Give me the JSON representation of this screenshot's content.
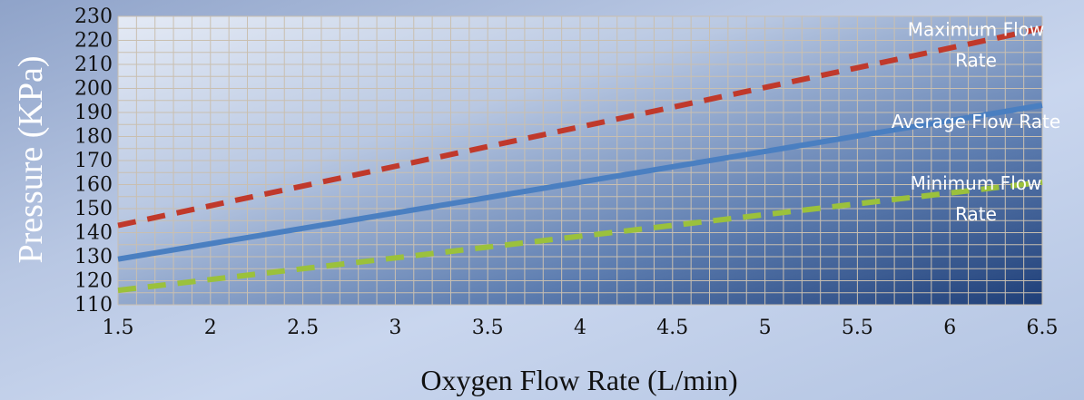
{
  "chart_data": {
    "type": "line",
    "title": "",
    "xlabel": "Oxygen Flow Rate (L/min)",
    "ylabel": "Pressure (KPa)",
    "xlim": [
      1.5,
      6.5
    ],
    "ylim": [
      110,
      230
    ],
    "x_ticks": [
      "1.5",
      "2",
      "2.5",
      "3",
      "3.5",
      "4",
      "4.5",
      "5",
      "5.5",
      "6",
      "6.5"
    ],
    "y_ticks": [
      "110",
      "120",
      "130",
      "140",
      "150",
      "160",
      "170",
      "180",
      "190",
      "200",
      "210",
      "220",
      "230"
    ],
    "grid": true,
    "legend": "none",
    "series": [
      {
        "name": "Maximum Flow Rate",
        "label_lines": [
          "Maximum Flow",
          "Rate"
        ],
        "color": "#c0392b",
        "style": "dashed",
        "x": [
          1.5,
          6.5
        ],
        "y": [
          143,
          225
        ]
      },
      {
        "name": "Average Flow Rate",
        "label_lines": [
          "Average Flow Rate"
        ],
        "color": "#4a7fc1",
        "style": "solid",
        "x": [
          1.5,
          6.5
        ],
        "y": [
          129,
          193
        ]
      },
      {
        "name": "Minimum Flow Rate",
        "label_lines": [
          "Minimum Flow",
          "Rate"
        ],
        "color": "#9bc13c",
        "style": "dashed",
        "x": [
          1.5,
          6.5
        ],
        "y": [
          116,
          161
        ]
      }
    ]
  }
}
